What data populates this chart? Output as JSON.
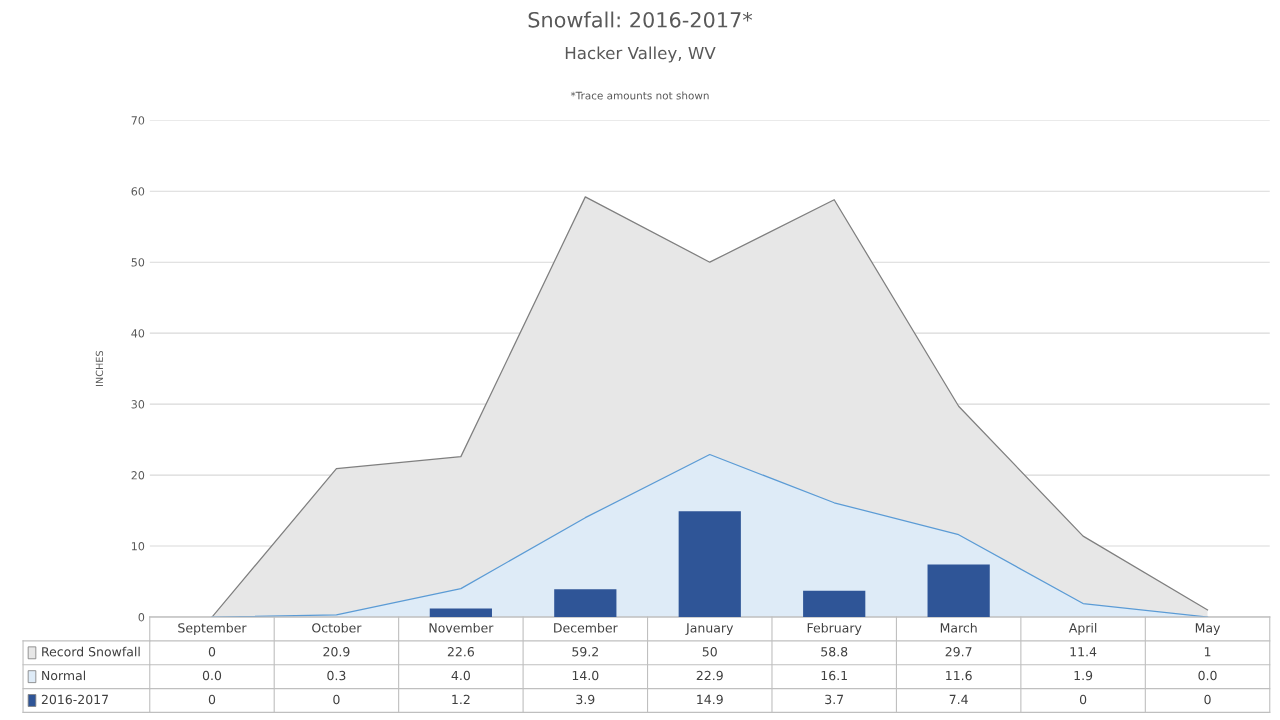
{
  "chart_data": {
    "type": "area",
    "title": "Snowfall: 2016-2017*",
    "subtitle": "Hacker Valley, WV",
    "ylabel": "INCHES",
    "annotations": [
      "*Trace amounts not shown"
    ],
    "categories": [
      "September",
      "October",
      "November",
      "December",
      "January",
      "February",
      "March",
      "April",
      "May"
    ],
    "series": [
      {
        "name": "Record Snowfall",
        "color": "#e7e7e7",
        "values": [
          0,
          20.9,
          22.6,
          59.2,
          50,
          58.8,
          29.7,
          11.4,
          1
        ],
        "value_labels": [
          "0",
          "20.9",
          "22.6",
          "59.2",
          "50",
          "58.8",
          "29.7",
          "11.4",
          "1"
        ]
      },
      {
        "name": "Normal",
        "color": "#deebf7",
        "values": [
          0.0,
          0.3,
          4.0,
          14.0,
          22.9,
          16.1,
          11.6,
          1.9,
          0.0
        ],
        "value_labels": [
          "0.0",
          "0.3",
          "4.0",
          "14.0",
          "22.9",
          "16.1",
          "11.6",
          "1.9",
          "0.0"
        ]
      },
      {
        "name": "2016-2017",
        "type": "bar",
        "color": "#2f5597",
        "values": [
          0,
          0,
          1.2,
          3.9,
          14.9,
          3.7,
          7.4,
          0,
          0
        ],
        "value_labels": [
          "0",
          "0",
          "1.2",
          "3.9",
          "14.9",
          "3.7",
          "7.4",
          "0",
          "0"
        ]
      }
    ],
    "ylim": [
      0,
      70
    ],
    "yticks": [
      0,
      10,
      20,
      30,
      40,
      50,
      60,
      70
    ],
    "grid": "y",
    "legend": "bottom"
  }
}
